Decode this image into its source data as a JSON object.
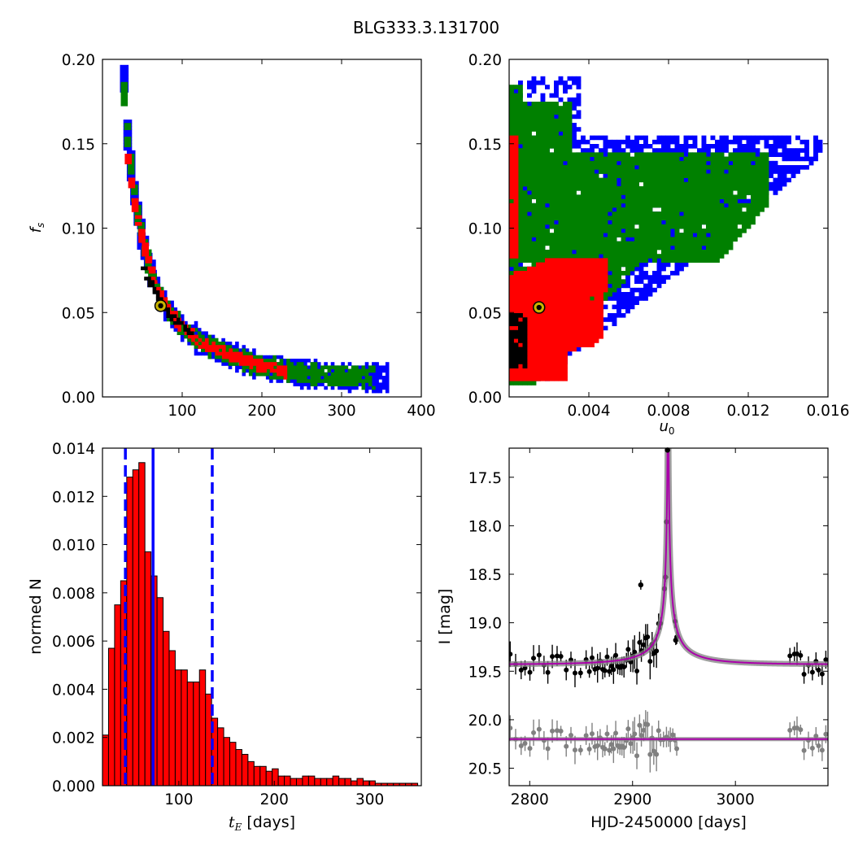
{
  "figure_title": "BLG333.3.131700",
  "chart_data": [
    {
      "type": "heatmap",
      "panel": "top-left",
      "xlabel": "",
      "ylabel": "f_s",
      "xlim": [
        0,
        400
      ],
      "ylim": [
        0,
        0.2
      ],
      "xticks": [
        100,
        200,
        300,
        400
      ],
      "xtick_labels": [
        "100",
        "200",
        "300",
        "400"
      ],
      "yticks": [
        0,
        0.05,
        0.1,
        0.15,
        0.2
      ],
      "ytick_labels": [
        "0.00",
        "0.05",
        "0.10",
        "0.15",
        "0.20"
      ],
      "levels": [
        {
          "color": "#0000ff",
          "ridge": [
            [
              25,
              0.188
            ],
            [
              28,
              0.16
            ],
            [
              33,
              0.14
            ],
            [
              38,
              0.12
            ],
            [
              45,
              0.1
            ],
            [
              55,
              0.08
            ],
            [
              65,
              0.065
            ],
            [
              80,
              0.052
            ],
            [
              100,
              0.04
            ],
            [
              120,
              0.033
            ],
            [
              150,
              0.026
            ],
            [
              180,
              0.021
            ],
            [
              210,
              0.017
            ],
            [
              250,
              0.014
            ],
            [
              300,
              0.012
            ],
            [
              355,
              0.0115
            ]
          ],
          "width": 0.0065
        },
        {
          "color": "#008000",
          "ridge": [
            [
              25,
              0.18
            ],
            [
              28,
              0.16
            ],
            [
              33,
              0.14
            ],
            [
              38,
              0.12
            ],
            [
              45,
              0.1
            ],
            [
              55,
              0.08
            ],
            [
              65,
              0.065
            ],
            [
              80,
              0.052
            ],
            [
              100,
              0.04
            ],
            [
              120,
              0.033
            ],
            [
              150,
              0.026
            ],
            [
              180,
              0.021
            ],
            [
              210,
              0.017
            ],
            [
              250,
              0.014
            ],
            [
              300,
              0.0125
            ],
            [
              340,
              0.012
            ]
          ],
          "width": 0.0048
        },
        {
          "color": "#ff0000",
          "ridge": [
            [
              30,
              0.14
            ],
            [
              33,
              0.13
            ],
            [
              38,
              0.115
            ],
            [
              45,
              0.1
            ],
            [
              55,
              0.08
            ],
            [
              65,
              0.065
            ],
            [
              80,
              0.052
            ],
            [
              100,
              0.04
            ],
            [
              120,
              0.033
            ],
            [
              150,
              0.026
            ],
            [
              180,
              0.021
            ],
            [
              200,
              0.018
            ],
            [
              230,
              0.015
            ]
          ],
          "width": 0.0025
        },
        {
          "color": "#000000",
          "ridge": [
            [
              50,
              0.075
            ],
            [
              55,
              0.07
            ],
            [
              65,
              0.062
            ],
            [
              80,
              0.05
            ],
            [
              95,
              0.043
            ],
            [
              110,
              0.037
            ]
          ],
          "width": 0.0012
        }
      ],
      "best_fit": {
        "x": 73,
        "y": 0.054,
        "color": "#c8b400"
      }
    },
    {
      "type": "heatmap",
      "panel": "top-right",
      "xlabel": "u_0",
      "ylabel": "",
      "xlim": [
        0,
        0.016
      ],
      "ylim": [
        0,
        0.2
      ],
      "xticks": [
        0.004,
        0.008,
        0.012,
        0.016
      ],
      "xtick_labels": [
        "0.004",
        "0.008",
        "0.012",
        "0.016"
      ],
      "yticks": [
        0,
        0.05,
        0.1,
        0.15,
        0.2
      ],
      "ytick_labels": [
        "0.00",
        "0.05",
        "0.10",
        "0.15",
        "0.20"
      ],
      "levels": [
        {
          "color": "#0000ff",
          "region": "sigma3"
        },
        {
          "color": "#008000",
          "region": "sigma2"
        },
        {
          "color": "#ff0000",
          "region": "sigma1"
        },
        {
          "color": "#000000",
          "region": "core"
        }
      ],
      "best_fit": {
        "x": 0.0015,
        "y": 0.053,
        "color": "#c8b400"
      }
    },
    {
      "type": "bar",
      "panel": "bottom-left",
      "xlabel": "t_E [days]",
      "ylabel": "normed N",
      "xlim": [
        20,
        354
      ],
      "ylim": [
        0,
        0.014
      ],
      "xticks": [
        100,
        200,
        300
      ],
      "xtick_labels": [
        "100",
        "200",
        "300"
      ],
      "yticks": [
        0,
        0.002,
        0.004,
        0.006,
        0.008,
        0.01,
        0.012,
        0.014
      ],
      "ytick_labels": [
        "0.000",
        "0.002",
        "0.004",
        "0.006",
        "0.008",
        "0.010",
        "0.012",
        "0.014"
      ],
      "bin_start": 20,
      "bin_width": 6.35,
      "values": [
        0.0021,
        0.0057,
        0.0075,
        0.0085,
        0.0128,
        0.0131,
        0.0134,
        0.0097,
        0.0087,
        0.0078,
        0.0064,
        0.0056,
        0.0048,
        0.0048,
        0.0043,
        0.0043,
        0.0048,
        0.0038,
        0.0028,
        0.0024,
        0.002,
        0.0018,
        0.0015,
        0.0013,
        0.001,
        0.0008,
        0.0008,
        0.0006,
        0.0007,
        0.0004,
        0.0004,
        0.0003,
        0.0003,
        0.0004,
        0.0004,
        0.0003,
        0.0003,
        0.0003,
        0.0004,
        0.0003,
        0.0003,
        0.0002,
        0.0003,
        0.0002,
        0.0002,
        0.0001,
        0.0001,
        0.0001,
        0.0001,
        0.0001,
        0.0001,
        0.0001
      ],
      "bar_color": "#ff0000",
      "vlines": [
        {
          "x": 44,
          "style": "dashed",
          "color": "#0000ff"
        },
        {
          "x": 73,
          "style": "solid",
          "color": "#0000ff"
        },
        {
          "x": 135,
          "style": "dashed",
          "color": "#0000ff"
        }
      ]
    },
    {
      "type": "scatter",
      "panel": "bottom-right",
      "xlabel": "HJD-2450000 [days]",
      "ylabel": "I [mag]",
      "xlim": [
        2780,
        3090
      ],
      "ylim": [
        20.68,
        17.2
      ],
      "y_inverted": true,
      "xticks": [
        2800,
        2900,
        3000
      ],
      "xtick_labels": [
        "2800",
        "2900",
        "3000"
      ],
      "yticks": [
        17.5,
        18,
        18.5,
        19,
        19.5,
        20,
        20.5
      ],
      "ytick_labels": [
        "17.5",
        "18.0",
        "18.5",
        "19.0",
        "19.5",
        "20.0",
        "20.5"
      ],
      "model": {
        "t0": 2934.5,
        "tE": 73,
        "u0": 0.0015,
        "fs": 0.053,
        "baseline": 19.43,
        "color": "#aa00aa"
      },
      "residual_baseline": 20.2,
      "data_color": "#000000",
      "residual_color": "#808080",
      "highlight_points": [
        {
          "x": 2934,
          "y": 17.22
        },
        {
          "x": 2933,
          "y": 17.96
        },
        {
          "x": 2932,
          "y": 18.53
        },
        {
          "x": 2931,
          "y": 18.65
        },
        {
          "x": 2908,
          "y": 18.61
        },
        {
          "x": 2942,
          "y": 19.18
        }
      ]
    }
  ]
}
